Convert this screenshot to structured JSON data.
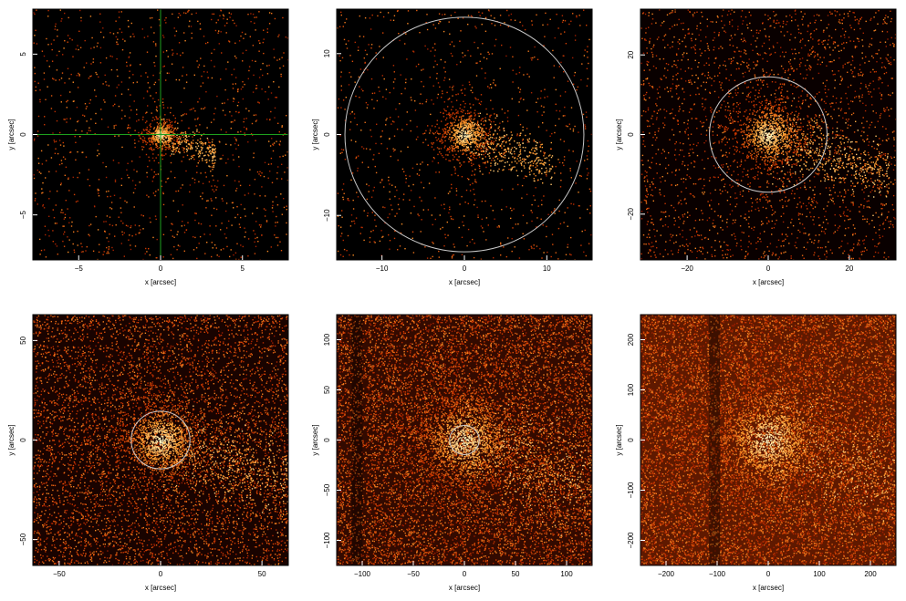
{
  "colors": {
    "background": "#000000",
    "frame": "#000000",
    "circle": "#c8c8c8",
    "crosshair": "#1ea01e",
    "heat_low": "#6e0000",
    "heat_mid": "#d23c00",
    "heat_high": "#ffa030",
    "heat_peak": "#ffffd0"
  },
  "panels": [
    {
      "id": "p1",
      "xlabel": "x [arcsec]",
      "ylabel": "y [arcsec]",
      "xticks": [
        {
          "value": -5,
          "label": "−5"
        },
        {
          "value": 0,
          "label": "0"
        },
        {
          "value": 5,
          "label": "5"
        }
      ],
      "yticks": [
        {
          "value": -5,
          "label": "−5"
        },
        {
          "value": 0,
          "label": "0"
        },
        {
          "value": 5,
          "label": "5"
        }
      ],
      "xlim": [
        -7.8,
        7.8
      ],
      "ylim": [
        -7.8,
        7.8
      ],
      "overlay": "crosshair",
      "circle_radius": null,
      "density": 0.06,
      "background_level": 0.0
    },
    {
      "id": "p2",
      "xlabel": "x [arcsec]",
      "ylabel": "y [arcsec]",
      "xticks": [
        {
          "value": -10,
          "label": "−10"
        },
        {
          "value": 0,
          "label": "0"
        },
        {
          "value": 10,
          "label": "10"
        }
      ],
      "yticks": [
        {
          "value": -10,
          "label": "−10"
        },
        {
          "value": 0,
          "label": "0"
        },
        {
          "value": 10,
          "label": "10"
        }
      ],
      "xlim": [
        -15.5,
        15.5
      ],
      "ylim": [
        -15.5,
        15.5
      ],
      "overlay": "circle",
      "circle_radius": 14.5,
      "density": 0.05,
      "background_level": 0.0
    },
    {
      "id": "p3",
      "xlabel": "x [arcsec]",
      "ylabel": "y [arcsec]",
      "xticks": [
        {
          "value": -20,
          "label": "−20"
        },
        {
          "value": 0,
          "label": "0"
        },
        {
          "value": 20,
          "label": "20"
        }
      ],
      "yticks": [
        {
          "value": -20,
          "label": "−20"
        },
        {
          "value": 0,
          "label": "0"
        },
        {
          "value": 20,
          "label": "20"
        }
      ],
      "xlim": [
        -31.5,
        31.5
      ],
      "ylim": [
        -31.5,
        31.5
      ],
      "overlay": "circle",
      "circle_radius": 14.5,
      "density": 0.12,
      "background_level": 0.08
    },
    {
      "id": "p4",
      "xlabel": "x [arcsec]",
      "ylabel": "y [arcsec]",
      "xticks": [
        {
          "value": -50,
          "label": "−50"
        },
        {
          "value": 0,
          "label": "0"
        },
        {
          "value": 50,
          "label": "50"
        }
      ],
      "yticks": [
        {
          "value": -50,
          "label": "−50"
        },
        {
          "value": 0,
          "label": "0"
        },
        {
          "value": 50,
          "label": "50"
        }
      ],
      "xlim": [
        -63,
        63
      ],
      "ylim": [
        -63,
        63
      ],
      "overlay": "circle",
      "circle_radius": 14.5,
      "density": 0.3,
      "background_level": 0.2
    },
    {
      "id": "p5",
      "xlabel": "x [arcsec]",
      "ylabel": "y [arcsec]",
      "xticks": [
        {
          "value": -100,
          "label": "−100"
        },
        {
          "value": -50,
          "label": "−50"
        },
        {
          "value": 0,
          "label": "0"
        },
        {
          "value": 50,
          "label": "50"
        },
        {
          "value": 100,
          "label": "100"
        }
      ],
      "yticks": [
        {
          "value": -100,
          "label": "−100"
        },
        {
          "value": -50,
          "label": "−50"
        },
        {
          "value": 0,
          "label": "0"
        },
        {
          "value": 50,
          "label": "50"
        },
        {
          "value": 100,
          "label": "100"
        }
      ],
      "xlim": [
        -125,
        125
      ],
      "ylim": [
        -125,
        125
      ],
      "overlay": "circle",
      "circle_radius": 14.5,
      "density": 0.5,
      "background_level": 0.35
    },
    {
      "id": "p6",
      "xlabel": "x [arcsec]",
      "ylabel": "y [arcsec]",
      "xticks": [
        {
          "value": -200,
          "label": "−200"
        },
        {
          "value": -100,
          "label": "−100"
        },
        {
          "value": 0,
          "label": "0"
        },
        {
          "value": 100,
          "label": "100"
        },
        {
          "value": 200,
          "label": "200"
        }
      ],
      "yticks": [
        {
          "value": -200,
          "label": "−200"
        },
        {
          "value": -100,
          "label": "−100"
        },
        {
          "value": 0,
          "label": "0"
        },
        {
          "value": 100,
          "label": "100"
        },
        {
          "value": 200,
          "label": "200"
        }
      ],
      "xlim": [
        -250,
        250
      ],
      "ylim": [
        -250,
        250
      ],
      "overlay": "none",
      "circle_radius": null,
      "density": 0.7,
      "background_level": 0.55
    }
  ]
}
